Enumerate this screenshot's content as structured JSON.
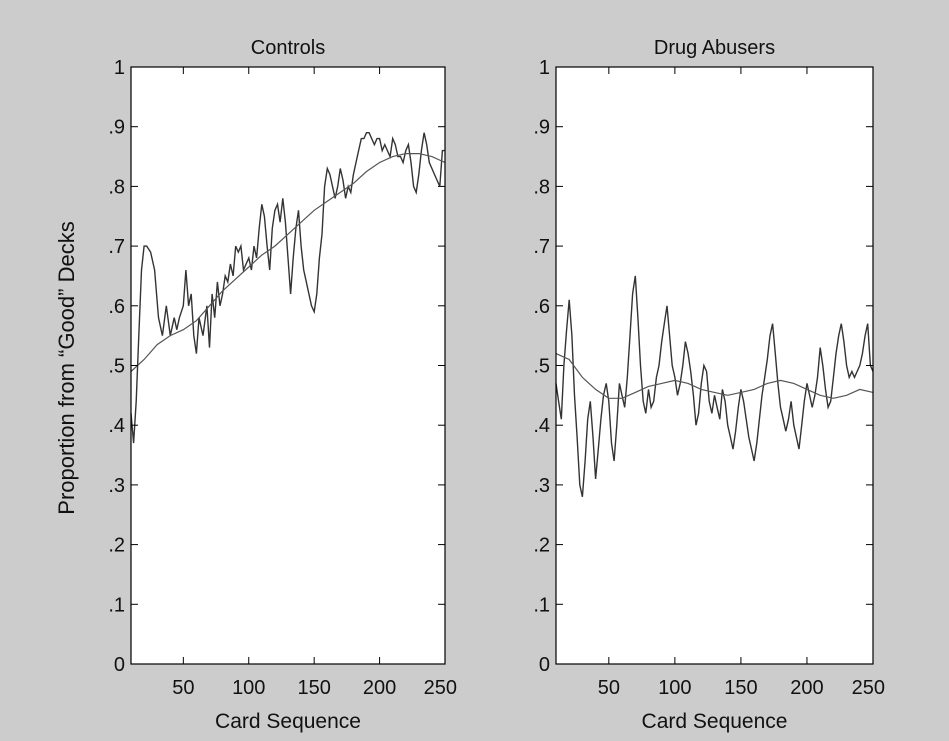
{
  "figure": {
    "background": "#cccccc",
    "plot_background": "#ffffff",
    "line_color": "#333333",
    "trend_color": "#555555",
    "ylabel": "Proportion from “Good” Decks"
  },
  "chart_data": [
    {
      "type": "line",
      "title": "Controls",
      "xlabel": "Card Sequence",
      "xlim": [
        10,
        250
      ],
      "ylim": [
        0,
        1
      ],
      "xticks": [
        50,
        100,
        150,
        200,
        250
      ],
      "yticks": [
        0,
        0.1,
        0.2,
        0.3,
        0.4,
        0.5,
        0.6,
        0.7,
        0.8,
        0.9,
        1
      ],
      "ytick_labels": [
        "0",
        ".1",
        ".2",
        ".3",
        ".4",
        ".5",
        ".6",
        ".7",
        ".8",
        ".9",
        "1"
      ],
      "grid": false,
      "series": [
        {
          "role": "raw",
          "x": [
            10,
            12,
            14,
            16,
            18,
            20,
            22,
            25,
            28,
            31,
            34,
            37,
            40,
            43,
            45,
            47,
            50,
            52,
            54,
            56,
            58,
            60,
            62,
            65,
            68,
            70,
            72,
            74,
            76,
            78,
            80,
            82,
            84,
            86,
            88,
            90,
            92,
            94,
            96,
            98,
            100,
            102,
            104,
            106,
            108,
            110,
            112,
            114,
            116,
            118,
            120,
            122,
            124,
            126,
            128,
            130,
            132,
            134,
            136,
            138,
            140,
            142,
            144,
            146,
            148,
            150,
            152,
            154,
            156,
            158,
            160,
            162,
            164,
            166,
            168,
            170,
            172,
            174,
            176,
            178,
            180,
            182,
            184,
            186,
            188,
            190,
            192,
            194,
            196,
            198,
            200,
            202,
            204,
            206,
            208,
            210,
            212,
            214,
            216,
            218,
            220,
            222,
            224,
            226,
            228,
            230,
            232,
            234,
            236,
            238,
            240,
            242,
            244,
            246,
            248,
            250
          ],
          "y": [
            0.42,
            0.37,
            0.44,
            0.55,
            0.66,
            0.7,
            0.7,
            0.69,
            0.66,
            0.58,
            0.55,
            0.6,
            0.55,
            0.58,
            0.56,
            0.58,
            0.6,
            0.66,
            0.6,
            0.62,
            0.55,
            0.52,
            0.58,
            0.55,
            0.6,
            0.53,
            0.62,
            0.58,
            0.64,
            0.6,
            0.62,
            0.65,
            0.64,
            0.67,
            0.65,
            0.7,
            0.69,
            0.7,
            0.66,
            0.67,
            0.68,
            0.66,
            0.7,
            0.68,
            0.73,
            0.77,
            0.75,
            0.7,
            0.66,
            0.73,
            0.76,
            0.77,
            0.74,
            0.78,
            0.74,
            0.68,
            0.62,
            0.68,
            0.73,
            0.76,
            0.7,
            0.66,
            0.64,
            0.62,
            0.6,
            0.59,
            0.62,
            0.68,
            0.72,
            0.8,
            0.83,
            0.82,
            0.8,
            0.78,
            0.8,
            0.83,
            0.81,
            0.78,
            0.8,
            0.79,
            0.82,
            0.84,
            0.86,
            0.88,
            0.88,
            0.89,
            0.89,
            0.88,
            0.87,
            0.88,
            0.88,
            0.86,
            0.87,
            0.86,
            0.85,
            0.88,
            0.87,
            0.85,
            0.85,
            0.84,
            0.86,
            0.87,
            0.84,
            0.8,
            0.79,
            0.82,
            0.86,
            0.89,
            0.87,
            0.84,
            0.83,
            0.82,
            0.81,
            0.8,
            0.86,
            0.86
          ]
        },
        {
          "role": "trend",
          "x": [
            10,
            20,
            30,
            40,
            50,
            60,
            70,
            80,
            90,
            100,
            110,
            120,
            130,
            140,
            150,
            160,
            170,
            180,
            190,
            200,
            210,
            220,
            230,
            240,
            250
          ],
          "y": [
            0.49,
            0.51,
            0.535,
            0.55,
            0.56,
            0.575,
            0.6,
            0.625,
            0.645,
            0.665,
            0.685,
            0.7,
            0.72,
            0.74,
            0.76,
            0.775,
            0.79,
            0.805,
            0.825,
            0.84,
            0.85,
            0.855,
            0.855,
            0.85,
            0.84
          ]
        }
      ]
    },
    {
      "type": "line",
      "title": "Drug Abusers",
      "xlabel": "Card Sequence",
      "xlim": [
        10,
        250
      ],
      "ylim": [
        0,
        1
      ],
      "xticks": [
        50,
        100,
        150,
        200,
        250
      ],
      "yticks": [
        0,
        0.1,
        0.2,
        0.3,
        0.4,
        0.5,
        0.6,
        0.7,
        0.8,
        0.9,
        1
      ],
      "ytick_labels": [
        "0",
        ".1",
        ".2",
        ".3",
        ".4",
        ".5",
        ".6",
        ".7",
        ".8",
        ".9",
        "1"
      ],
      "grid": false,
      "series": [
        {
          "role": "raw",
          "x": [
            10,
            12,
            14,
            16,
            18,
            20,
            22,
            24,
            26,
            28,
            30,
            32,
            34,
            36,
            38,
            40,
            42,
            44,
            46,
            48,
            50,
            52,
            54,
            56,
            58,
            60,
            62,
            64,
            66,
            68,
            70,
            72,
            74,
            76,
            78,
            80,
            82,
            84,
            86,
            88,
            90,
            92,
            94,
            96,
            98,
            100,
            102,
            104,
            106,
            108,
            110,
            112,
            114,
            116,
            118,
            120,
            122,
            124,
            126,
            128,
            130,
            132,
            134,
            136,
            138,
            140,
            142,
            144,
            146,
            148,
            150,
            152,
            154,
            156,
            158,
            160,
            162,
            164,
            166,
            168,
            170,
            172,
            174,
            176,
            178,
            180,
            182,
            184,
            186,
            188,
            190,
            192,
            194,
            196,
            198,
            200,
            202,
            204,
            206,
            208,
            210,
            212,
            214,
            216,
            218,
            220,
            222,
            224,
            226,
            228,
            230,
            232,
            234,
            236,
            238,
            240,
            242,
            244,
            246,
            248,
            250
          ],
          "y": [
            0.47,
            0.44,
            0.41,
            0.5,
            0.56,
            0.61,
            0.55,
            0.45,
            0.38,
            0.3,
            0.28,
            0.34,
            0.41,
            0.44,
            0.38,
            0.31,
            0.36,
            0.41,
            0.45,
            0.47,
            0.44,
            0.37,
            0.34,
            0.4,
            0.47,
            0.45,
            0.43,
            0.48,
            0.55,
            0.62,
            0.65,
            0.58,
            0.5,
            0.44,
            0.42,
            0.46,
            0.43,
            0.44,
            0.48,
            0.5,
            0.54,
            0.57,
            0.6,
            0.55,
            0.5,
            0.48,
            0.45,
            0.47,
            0.5,
            0.54,
            0.52,
            0.49,
            0.45,
            0.4,
            0.42,
            0.47,
            0.5,
            0.49,
            0.44,
            0.42,
            0.45,
            0.43,
            0.41,
            0.46,
            0.44,
            0.4,
            0.38,
            0.36,
            0.39,
            0.43,
            0.46,
            0.44,
            0.41,
            0.38,
            0.36,
            0.34,
            0.37,
            0.41,
            0.45,
            0.48,
            0.51,
            0.55,
            0.57,
            0.52,
            0.47,
            0.43,
            0.41,
            0.39,
            0.41,
            0.44,
            0.4,
            0.38,
            0.36,
            0.4,
            0.44,
            0.47,
            0.45,
            0.43,
            0.45,
            0.48,
            0.53,
            0.5,
            0.46,
            0.43,
            0.44,
            0.48,
            0.52,
            0.55,
            0.57,
            0.54,
            0.5,
            0.48,
            0.49,
            0.48,
            0.49,
            0.5,
            0.52,
            0.55,
            0.57,
            0.5,
            0.49
          ]
        },
        {
          "role": "trend",
          "x": [
            10,
            20,
            30,
            40,
            50,
            60,
            70,
            80,
            90,
            100,
            110,
            120,
            130,
            140,
            150,
            160,
            170,
            180,
            190,
            200,
            210,
            220,
            230,
            240,
            250
          ],
          "y": [
            0.52,
            0.51,
            0.48,
            0.46,
            0.445,
            0.445,
            0.455,
            0.465,
            0.47,
            0.475,
            0.47,
            0.46,
            0.455,
            0.45,
            0.455,
            0.46,
            0.47,
            0.475,
            0.47,
            0.46,
            0.45,
            0.445,
            0.45,
            0.46,
            0.455
          ]
        }
      ]
    }
  ]
}
